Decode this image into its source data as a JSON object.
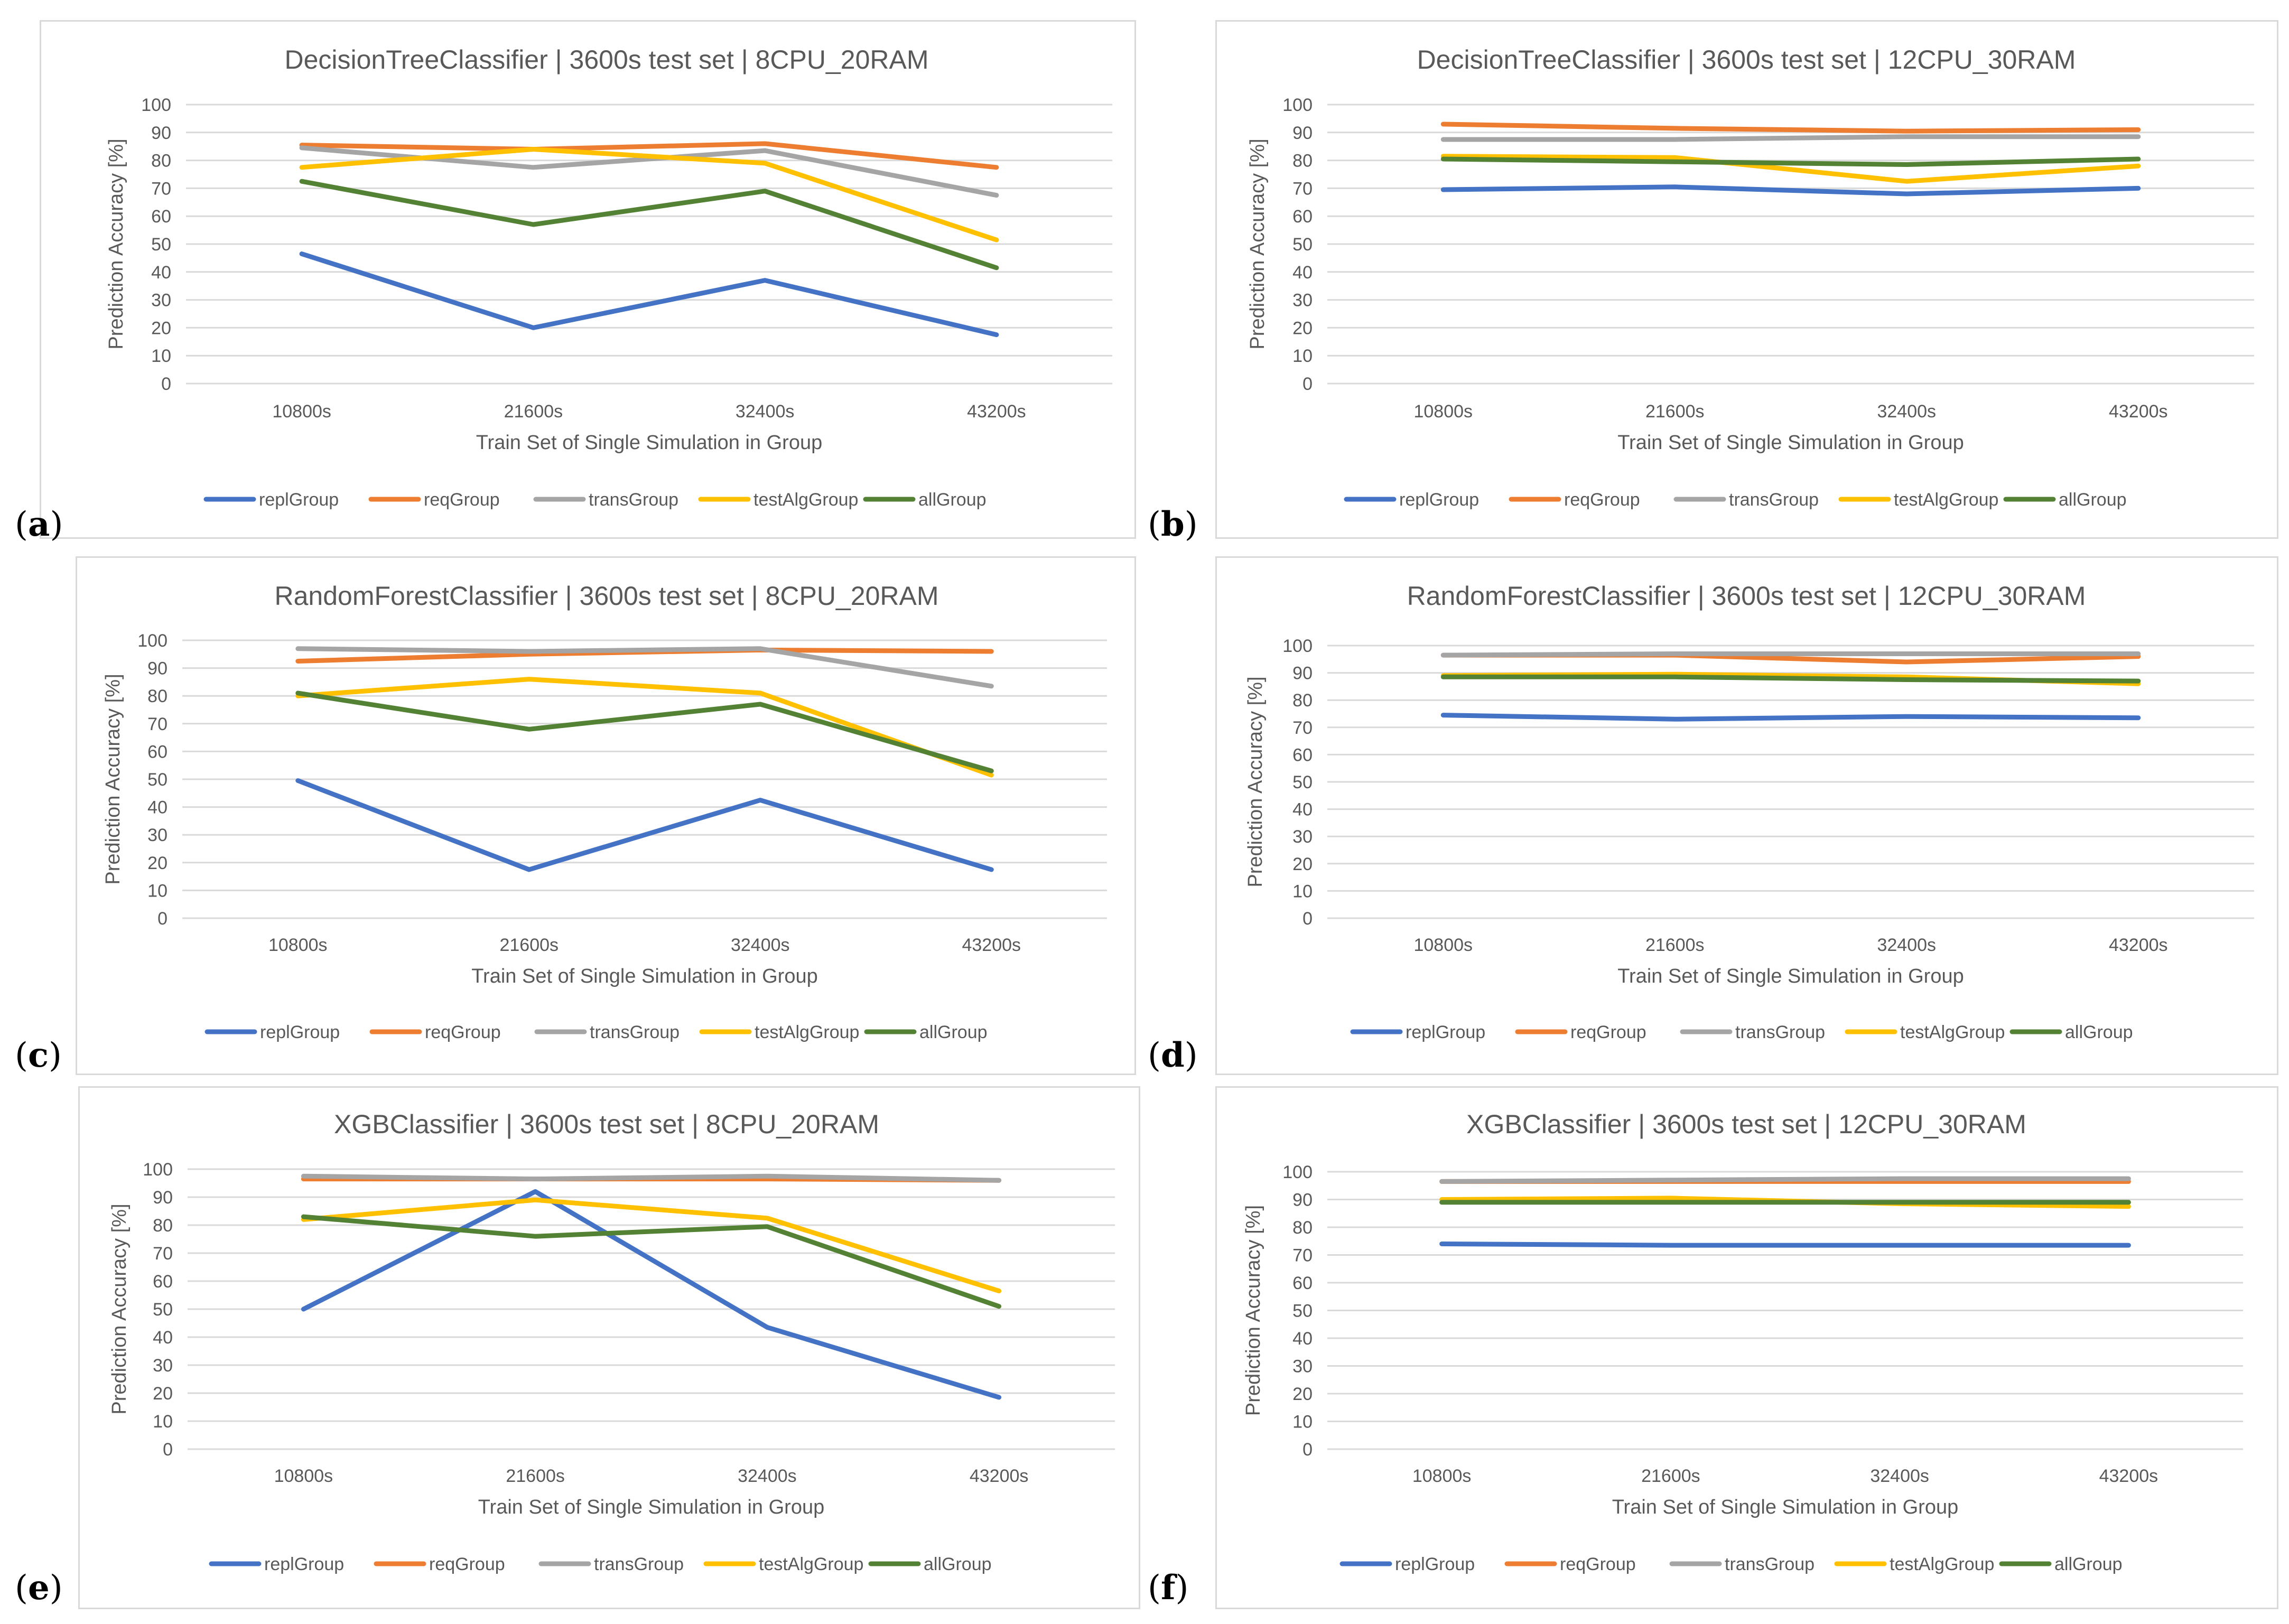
{
  "legend_order": [
    "replGroup",
    "reqGroup",
    "transGroup",
    "testAlgGroup",
    "allGroup"
  ],
  "colors": {
    "replGroup": "#4472c4",
    "reqGroup": "#ed7d31",
    "transGroup": "#a5a5a5",
    "testAlgGroup": "#ffc000",
    "allGroup": "#548235"
  },
  "chart_data": [
    {
      "panel": "a",
      "type": "line",
      "title": "DecisionTreeClassifier | 3600s test set | 8CPU_20RAM",
      "xlabel": "Train Set of Single Simulation in Group",
      "ylabel": "Prediction Accuracy [%]",
      "categories": [
        "10800s",
        "21600s",
        "32400s",
        "43200s"
      ],
      "ylim": [
        0,
        100
      ],
      "yticks": [
        0,
        10,
        20,
        30,
        40,
        50,
        60,
        70,
        80,
        90,
        100
      ],
      "grid": true,
      "legend_position": "bottom",
      "series": [
        {
          "name": "replGroup",
          "values": [
            46.5,
            20,
            37,
            17.5
          ]
        },
        {
          "name": "reqGroup",
          "values": [
            85.5,
            84,
            86,
            77.5
          ]
        },
        {
          "name": "transGroup",
          "values": [
            84.5,
            77.5,
            83.5,
            67.5
          ]
        },
        {
          "name": "testAlgGroup",
          "values": [
            77.5,
            84,
            79,
            51.5
          ]
        },
        {
          "name": "allGroup",
          "values": [
            72.5,
            57,
            69,
            41.5
          ]
        }
      ]
    },
    {
      "panel": "b",
      "type": "line",
      "title": "DecisionTreeClassifier | 3600s test set | 12CPU_30RAM",
      "xlabel": "Train Set of Single Simulation in Group",
      "ylabel": "Prediction Accuracy [%]",
      "categories": [
        "10800s",
        "21600s",
        "32400s",
        "43200s"
      ],
      "ylim": [
        0,
        100
      ],
      "yticks": [
        0,
        10,
        20,
        30,
        40,
        50,
        60,
        70,
        80,
        90,
        100
      ],
      "grid": true,
      "legend_position": "bottom",
      "series": [
        {
          "name": "replGroup",
          "values": [
            69.5,
            70.5,
            68,
            70
          ]
        },
        {
          "name": "reqGroup",
          "values": [
            93,
            91.5,
            90.5,
            91
          ]
        },
        {
          "name": "transGroup",
          "values": [
            87.5,
            87.5,
            88.5,
            88.5
          ]
        },
        {
          "name": "testAlgGroup",
          "values": [
            81.5,
            81,
            72.5,
            78
          ]
        },
        {
          "name": "allGroup",
          "values": [
            80.5,
            79.5,
            78.5,
            80.5
          ]
        }
      ]
    },
    {
      "panel": "c",
      "type": "line",
      "title": "RandomForestClassifier | 3600s test set | 8CPU_20RAM",
      "xlabel": "Train Set of Single Simulation in Group",
      "ylabel": "Prediction Accuracy [%]",
      "categories": [
        "10800s",
        "21600s",
        "32400s",
        "43200s"
      ],
      "ylim": [
        0,
        100
      ],
      "yticks": [
        0,
        10,
        20,
        30,
        40,
        50,
        60,
        70,
        80,
        90,
        100
      ],
      "grid": true,
      "legend_position": "bottom",
      "series": [
        {
          "name": "replGroup",
          "values": [
            49.5,
            17.5,
            42.5,
            17.5
          ]
        },
        {
          "name": "reqGroup",
          "values": [
            92.5,
            95,
            96.5,
            96
          ]
        },
        {
          "name": "transGroup",
          "values": [
            97,
            96,
            97,
            83.5
          ]
        },
        {
          "name": "testAlgGroup",
          "values": [
            80,
            86,
            81,
            51.5
          ]
        },
        {
          "name": "allGroup",
          "values": [
            81,
            68,
            77,
            53
          ]
        }
      ]
    },
    {
      "panel": "d",
      "type": "line",
      "title": "RandomForestClassifier | 3600s test set | 12CPU_30RAM",
      "xlabel": "Train Set of Single Simulation in Group",
      "ylabel": "Prediction Accuracy [%]",
      "categories": [
        "10800s",
        "21600s",
        "32400s",
        "43200s"
      ],
      "ylim": [
        0,
        100
      ],
      "yticks": [
        0,
        10,
        20,
        30,
        40,
        50,
        60,
        70,
        80,
        90,
        100
      ],
      "grid": true,
      "legend_position": "bottom",
      "series": [
        {
          "name": "replGroup",
          "values": [
            74.5,
            73,
            74,
            73.5
          ]
        },
        {
          "name": "reqGroup",
          "values": [
            96.5,
            96.5,
            94,
            96
          ]
        },
        {
          "name": "transGroup",
          "values": [
            96.5,
            97,
            97,
            97
          ]
        },
        {
          "name": "testAlgGroup",
          "values": [
            89,
            89.5,
            88.5,
            86
          ]
        },
        {
          "name": "allGroup",
          "values": [
            88.5,
            88.5,
            87.5,
            87
          ]
        }
      ]
    },
    {
      "panel": "e",
      "type": "line",
      "title": "XGBClassifier | 3600s test set | 8CPU_20RAM",
      "xlabel": "Train Set of Single Simulation in Group",
      "ylabel": "Prediction Accuracy [%]",
      "categories": [
        "10800s",
        "21600s",
        "32400s",
        "43200s"
      ],
      "ylim": [
        0,
        100
      ],
      "yticks": [
        0,
        10,
        20,
        30,
        40,
        50,
        60,
        70,
        80,
        90,
        100
      ],
      "grid": true,
      "legend_position": "bottom",
      "series": [
        {
          "name": "replGroup",
          "values": [
            50,
            92,
            43.5,
            18.5
          ]
        },
        {
          "name": "reqGroup",
          "values": [
            96.5,
            96.5,
            96.5,
            96
          ]
        },
        {
          "name": "transGroup",
          "values": [
            97.5,
            96.5,
            97.5,
            96
          ]
        },
        {
          "name": "testAlgGroup",
          "values": [
            82,
            89,
            82.5,
            56.5
          ]
        },
        {
          "name": "allGroup",
          "values": [
            83,
            76,
            79.5,
            51
          ]
        }
      ]
    },
    {
      "panel": "f",
      "type": "line",
      "title": "XGBClassifier | 3600s test set | 12CPU_30RAM",
      "xlabel": "Train Set of Single Simulation in Group",
      "ylabel": "Prediction Accuracy [%]",
      "categories": [
        "10800s",
        "21600s",
        "32400s",
        "43200s"
      ],
      "ylim": [
        0,
        100
      ],
      "yticks": [
        0,
        10,
        20,
        30,
        40,
        50,
        60,
        70,
        80,
        90,
        100
      ],
      "grid": true,
      "legend_position": "bottom",
      "series": [
        {
          "name": "replGroup",
          "values": [
            74,
            73.5,
            73.5,
            73.5
          ]
        },
        {
          "name": "reqGroup",
          "values": [
            96.5,
            96.5,
            96.5,
            96.5
          ]
        },
        {
          "name": "transGroup",
          "values": [
            96.5,
            97,
            97.5,
            97.5
          ]
        },
        {
          "name": "testAlgGroup",
          "values": [
            90,
            90.5,
            88.5,
            87.5
          ]
        },
        {
          "name": "allGroup",
          "values": [
            89,
            89,
            89,
            89
          ]
        }
      ]
    }
  ]
}
